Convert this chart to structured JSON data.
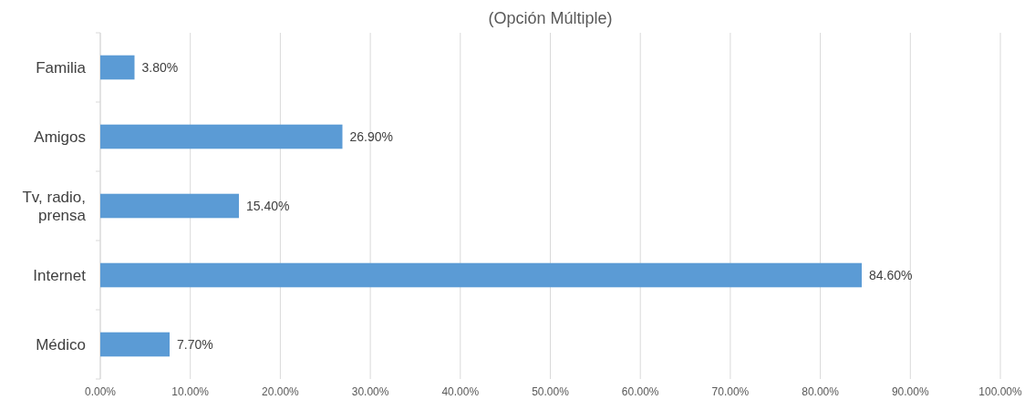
{
  "chart_data": {
    "type": "bar",
    "orientation": "horizontal",
    "title": "(Opción Múltiple)",
    "categories": [
      "Familia",
      "Amigos",
      "Tv, radio, prensa",
      "Internet",
      "Médico"
    ],
    "values": [
      3.8,
      26.9,
      15.4,
      84.6,
      7.7
    ],
    "value_labels": [
      "3.80%",
      "26.90%",
      "15.40%",
      "84.60%",
      "7.70%"
    ],
    "color": "#5b9bd5",
    "xlim": [
      0,
      100
    ],
    "xticks": [
      {
        "value": 0,
        "label": "0.00%"
      },
      {
        "value": 10,
        "label": "10.00%"
      },
      {
        "value": 20,
        "label": "20.00%"
      },
      {
        "value": 30,
        "label": "30.00%"
      },
      {
        "value": 40,
        "label": "40.00%"
      },
      {
        "value": 50,
        "label": "50.00%"
      },
      {
        "value": 60,
        "label": "60.00%"
      },
      {
        "value": 70,
        "label": "70.00%"
      },
      {
        "value": 80,
        "label": "80.00%"
      },
      {
        "value": 90,
        "label": "90.00%"
      },
      {
        "value": 100,
        "label": "100.00%"
      }
    ],
    "grid": "x"
  }
}
